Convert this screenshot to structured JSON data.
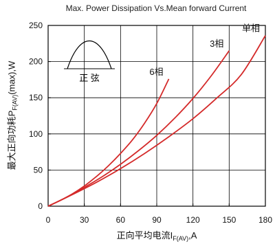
{
  "chart_data": {
    "type": "line",
    "title": "Max. Power Dissipation Vs.Mean forward Current",
    "xlabel": {
      "prefix": "正向平均电流",
      "main": "I",
      "sub": "F(AV)",
      "unit": ",A"
    },
    "ylabel": {
      "prefix": "最大正向功耗",
      "main": "P",
      "sub": "F(AV)",
      "unit": "(max),W"
    },
    "xlim": [
      0,
      180
    ],
    "ylim": [
      0,
      250
    ],
    "x_ticks": [
      0,
      30,
      60,
      90,
      120,
      150,
      180
    ],
    "y_ticks": [
      0,
      50,
      100,
      150,
      200,
      250
    ],
    "grid": true,
    "series": [
      {
        "name": "6相",
        "x": [
          0,
          10,
          20,
          30,
          40,
          50,
          60,
          70,
          80,
          90,
          100
        ],
        "y": [
          0,
          8,
          17,
          28,
          41,
          56,
          73,
          92,
          115,
          142,
          176
        ]
      },
      {
        "name": "3相",
        "x": [
          0,
          15,
          30,
          45,
          60,
          75,
          90,
          105,
          120,
          135,
          150
        ],
        "y": [
          0,
          12,
          26,
          41,
          58,
          77,
          98,
          122,
          149,
          180,
          215
        ]
      },
      {
        "name": "单相",
        "x": [
          0,
          20,
          40,
          60,
          80,
          100,
          120,
          140,
          160,
          180
        ],
        "y": [
          0,
          16,
          33,
          52,
          73,
          96,
          121,
          150,
          182,
          236
        ]
      }
    ],
    "inset_label": "正  弦"
  }
}
